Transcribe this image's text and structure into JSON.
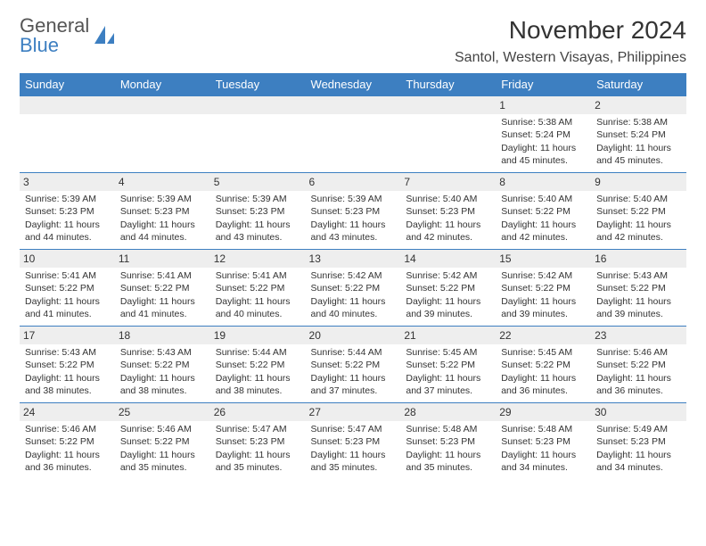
{
  "brand": {
    "line1": "General",
    "line2": "Blue"
  },
  "title": "November 2024",
  "location": "Santol, Western Visayas, Philippines",
  "colors": {
    "header_bg": "#3d7fc1",
    "header_text": "#ffffff",
    "spacer_bg": "#eeeeee",
    "border": "#3d7fc1",
    "body_text": "#333333",
    "background": "#ffffff"
  },
  "day_headers": [
    "Sunday",
    "Monday",
    "Tuesday",
    "Wednesday",
    "Thursday",
    "Friday",
    "Saturday"
  ],
  "weeks": [
    [
      null,
      null,
      null,
      null,
      null,
      {
        "n": "1",
        "sunrise": "Sunrise: 5:38 AM",
        "sunset": "Sunset: 5:24 PM",
        "daylight": "Daylight: 11 hours and 45 minutes."
      },
      {
        "n": "2",
        "sunrise": "Sunrise: 5:38 AM",
        "sunset": "Sunset: 5:24 PM",
        "daylight": "Daylight: 11 hours and 45 minutes."
      }
    ],
    [
      {
        "n": "3",
        "sunrise": "Sunrise: 5:39 AM",
        "sunset": "Sunset: 5:23 PM",
        "daylight": "Daylight: 11 hours and 44 minutes."
      },
      {
        "n": "4",
        "sunrise": "Sunrise: 5:39 AM",
        "sunset": "Sunset: 5:23 PM",
        "daylight": "Daylight: 11 hours and 44 minutes."
      },
      {
        "n": "5",
        "sunrise": "Sunrise: 5:39 AM",
        "sunset": "Sunset: 5:23 PM",
        "daylight": "Daylight: 11 hours and 43 minutes."
      },
      {
        "n": "6",
        "sunrise": "Sunrise: 5:39 AM",
        "sunset": "Sunset: 5:23 PM",
        "daylight": "Daylight: 11 hours and 43 minutes."
      },
      {
        "n": "7",
        "sunrise": "Sunrise: 5:40 AM",
        "sunset": "Sunset: 5:23 PM",
        "daylight": "Daylight: 11 hours and 42 minutes."
      },
      {
        "n": "8",
        "sunrise": "Sunrise: 5:40 AM",
        "sunset": "Sunset: 5:22 PM",
        "daylight": "Daylight: 11 hours and 42 minutes."
      },
      {
        "n": "9",
        "sunrise": "Sunrise: 5:40 AM",
        "sunset": "Sunset: 5:22 PM",
        "daylight": "Daylight: 11 hours and 42 minutes."
      }
    ],
    [
      {
        "n": "10",
        "sunrise": "Sunrise: 5:41 AM",
        "sunset": "Sunset: 5:22 PM",
        "daylight": "Daylight: 11 hours and 41 minutes."
      },
      {
        "n": "11",
        "sunrise": "Sunrise: 5:41 AM",
        "sunset": "Sunset: 5:22 PM",
        "daylight": "Daylight: 11 hours and 41 minutes."
      },
      {
        "n": "12",
        "sunrise": "Sunrise: 5:41 AM",
        "sunset": "Sunset: 5:22 PM",
        "daylight": "Daylight: 11 hours and 40 minutes."
      },
      {
        "n": "13",
        "sunrise": "Sunrise: 5:42 AM",
        "sunset": "Sunset: 5:22 PM",
        "daylight": "Daylight: 11 hours and 40 minutes."
      },
      {
        "n": "14",
        "sunrise": "Sunrise: 5:42 AM",
        "sunset": "Sunset: 5:22 PM",
        "daylight": "Daylight: 11 hours and 39 minutes."
      },
      {
        "n": "15",
        "sunrise": "Sunrise: 5:42 AM",
        "sunset": "Sunset: 5:22 PM",
        "daylight": "Daylight: 11 hours and 39 minutes."
      },
      {
        "n": "16",
        "sunrise": "Sunrise: 5:43 AM",
        "sunset": "Sunset: 5:22 PM",
        "daylight": "Daylight: 11 hours and 39 minutes."
      }
    ],
    [
      {
        "n": "17",
        "sunrise": "Sunrise: 5:43 AM",
        "sunset": "Sunset: 5:22 PM",
        "daylight": "Daylight: 11 hours and 38 minutes."
      },
      {
        "n": "18",
        "sunrise": "Sunrise: 5:43 AM",
        "sunset": "Sunset: 5:22 PM",
        "daylight": "Daylight: 11 hours and 38 minutes."
      },
      {
        "n": "19",
        "sunrise": "Sunrise: 5:44 AM",
        "sunset": "Sunset: 5:22 PM",
        "daylight": "Daylight: 11 hours and 38 minutes."
      },
      {
        "n": "20",
        "sunrise": "Sunrise: 5:44 AM",
        "sunset": "Sunset: 5:22 PM",
        "daylight": "Daylight: 11 hours and 37 minutes."
      },
      {
        "n": "21",
        "sunrise": "Sunrise: 5:45 AM",
        "sunset": "Sunset: 5:22 PM",
        "daylight": "Daylight: 11 hours and 37 minutes."
      },
      {
        "n": "22",
        "sunrise": "Sunrise: 5:45 AM",
        "sunset": "Sunset: 5:22 PM",
        "daylight": "Daylight: 11 hours and 36 minutes."
      },
      {
        "n": "23",
        "sunrise": "Sunrise: 5:46 AM",
        "sunset": "Sunset: 5:22 PM",
        "daylight": "Daylight: 11 hours and 36 minutes."
      }
    ],
    [
      {
        "n": "24",
        "sunrise": "Sunrise: 5:46 AM",
        "sunset": "Sunset: 5:22 PM",
        "daylight": "Daylight: 11 hours and 36 minutes."
      },
      {
        "n": "25",
        "sunrise": "Sunrise: 5:46 AM",
        "sunset": "Sunset: 5:22 PM",
        "daylight": "Daylight: 11 hours and 35 minutes."
      },
      {
        "n": "26",
        "sunrise": "Sunrise: 5:47 AM",
        "sunset": "Sunset: 5:23 PM",
        "daylight": "Daylight: 11 hours and 35 minutes."
      },
      {
        "n": "27",
        "sunrise": "Sunrise: 5:47 AM",
        "sunset": "Sunset: 5:23 PM",
        "daylight": "Daylight: 11 hours and 35 minutes."
      },
      {
        "n": "28",
        "sunrise": "Sunrise: 5:48 AM",
        "sunset": "Sunset: 5:23 PM",
        "daylight": "Daylight: 11 hours and 35 minutes."
      },
      {
        "n": "29",
        "sunrise": "Sunrise: 5:48 AM",
        "sunset": "Sunset: 5:23 PM",
        "daylight": "Daylight: 11 hours and 34 minutes."
      },
      {
        "n": "30",
        "sunrise": "Sunrise: 5:49 AM",
        "sunset": "Sunset: 5:23 PM",
        "daylight": "Daylight: 11 hours and 34 minutes."
      }
    ]
  ]
}
